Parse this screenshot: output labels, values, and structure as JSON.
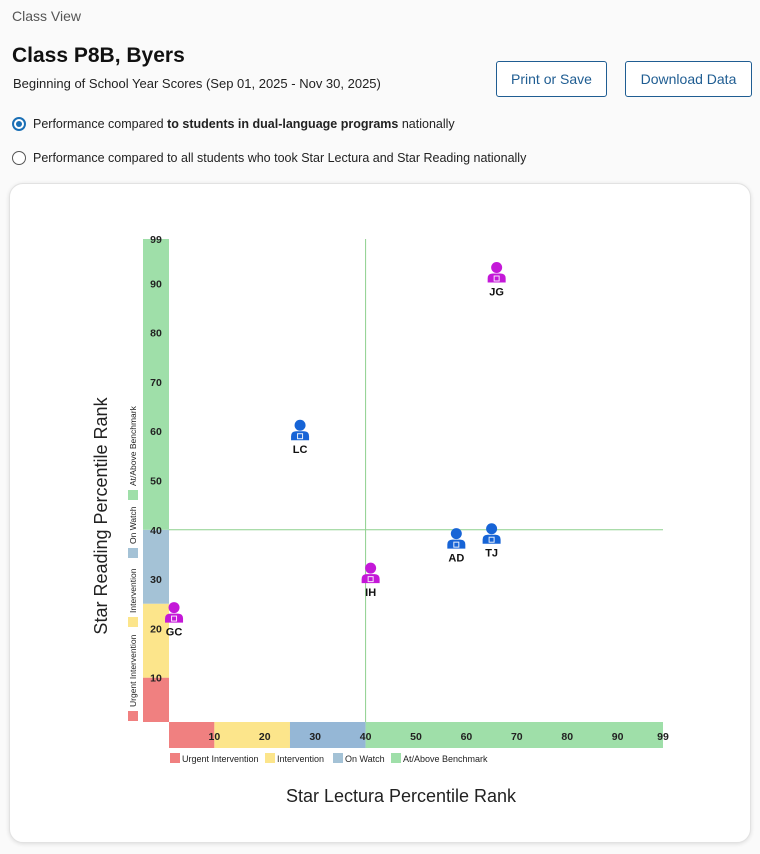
{
  "breadcrumb": "Class View",
  "page_title": "Class P8B, Byers",
  "subtitle": "Beginning of School Year Scores (Sep 01, 2025 - Nov 30, 2025)",
  "buttons": {
    "print": "Print or Save",
    "download": "Download Data"
  },
  "comparison_options": [
    {
      "prefix": "Performance compared ",
      "bold": "to students in dual-language programs",
      "suffix": " nationally",
      "selected": true
    },
    {
      "prefix": "Performance compared to all students who took Star Lectura and Star Reading nationally",
      "bold": "",
      "suffix": "",
      "selected": false
    }
  ],
  "colors": {
    "urgent": "#f08080",
    "intervention": "#fce58b",
    "on_watch": "#a4c2d6",
    "on_watch_x": "#95b7d6",
    "benchmark": "#9fdfa9",
    "student_blue": "#1764d6",
    "student_magenta": "#c418d8",
    "gridline": "#8ed08e"
  },
  "chart_data": {
    "type": "scatter",
    "xlabel": "Star Lectura Percentile Rank",
    "ylabel": "Star Reading Percentile Rank",
    "xlim": [
      1,
      99
    ],
    "ylim": [
      1,
      99
    ],
    "x_ticks": [
      10,
      20,
      30,
      40,
      50,
      60,
      70,
      80,
      90,
      99
    ],
    "y_ticks": [
      10,
      20,
      30,
      40,
      50,
      60,
      70,
      80,
      90,
      99
    ],
    "reference_lines": {
      "x": 40,
      "y": 40
    },
    "bands": [
      {
        "label": "Urgent Intervention",
        "from": 1,
        "to": 10,
        "color_key": "urgent"
      },
      {
        "label": "Intervention",
        "from": 10,
        "to": 25,
        "color_key": "intervention"
      },
      {
        "label": "On Watch",
        "from": 25,
        "to": 40,
        "color_key": "on_watch"
      },
      {
        "label": "At/Above Benchmark",
        "from": 40,
        "to": 99,
        "color_key": "benchmark"
      }
    ],
    "y_bands": [
      {
        "label": "Urgent Intervention",
        "from": 1,
        "to": 10,
        "color_key": "urgent"
      },
      {
        "label": "Intervention",
        "from": 10,
        "to": 25,
        "color_key": "intervention"
      },
      {
        "label": "On Watch",
        "from": 25,
        "to": 40,
        "color_key": "on_watch"
      },
      {
        "label": "At/Above Benchmark",
        "from": 40,
        "to": 99,
        "color_key": "benchmark"
      }
    ],
    "legend": [
      "Urgent Intervention",
      "Intervention",
      "On Watch",
      "At/Above Benchmark"
    ],
    "points": [
      {
        "initials": "JG",
        "x": 66,
        "y": 92,
        "color_key": "student_magenta"
      },
      {
        "initials": "LC",
        "x": 27,
        "y": 60,
        "color_key": "student_blue"
      },
      {
        "initials": "AD",
        "x": 58,
        "y": 38,
        "color_key": "student_blue"
      },
      {
        "initials": "TJ",
        "x": 65,
        "y": 39,
        "color_key": "student_blue"
      },
      {
        "initials": "IH",
        "x": 41,
        "y": 31,
        "color_key": "student_magenta"
      },
      {
        "initials": "GC",
        "x": 2,
        "y": 23,
        "color_key": "student_magenta"
      }
    ]
  }
}
